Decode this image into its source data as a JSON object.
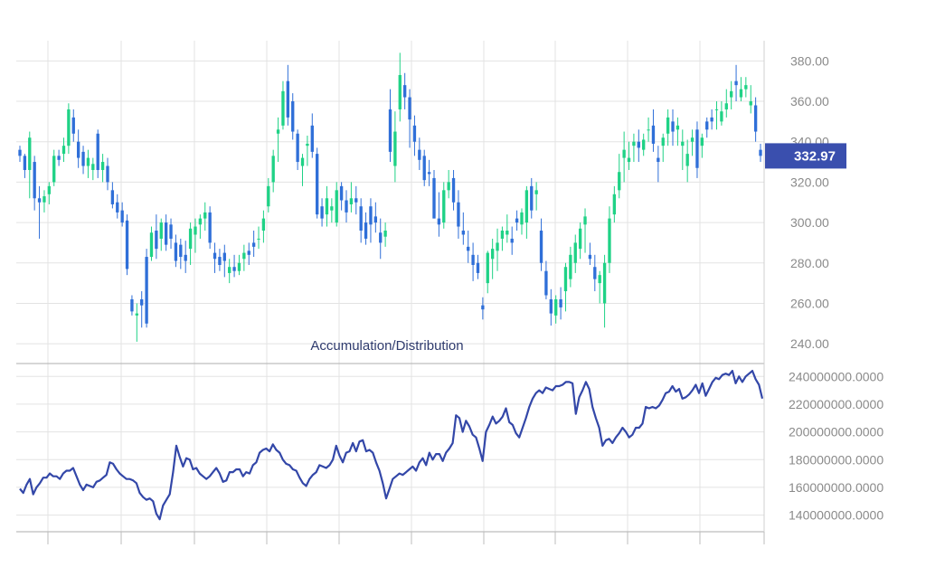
{
  "colors": {
    "up": "#1fd286",
    "down": "#2f6fd8",
    "ad_line": "#3347a8",
    "grid": "#e3e3e3",
    "axis_text": "#8a8a8a",
    "price_tag_bg": "#3a4fae",
    "price_tag_text": "#ffffff",
    "indicator_label": "#2f3b6e"
  },
  "chart_data": [
    {
      "type": "candlestick",
      "y_ticks": [
        "240.00",
        "260.00",
        "280.00",
        "300.00",
        "320.00",
        "340.00",
        "360.00",
        "380.00"
      ],
      "ylim": [
        232,
        390
      ],
      "current_price": "332.97",
      "current_price_value": 332.97,
      "candles": [
        [
          336,
          338,
          330,
          333
        ],
        [
          333,
          334,
          322,
          326
        ],
        [
          326,
          345,
          312,
          342
        ],
        [
          330,
          333,
          306,
          312
        ],
        [
          312,
          318,
          292,
          310
        ],
        [
          310,
          316,
          305,
          313
        ],
        [
          314,
          320,
          309,
          318
        ],
        [
          320,
          336,
          318,
          333
        ],
        [
          333,
          336,
          328,
          331
        ],
        [
          334,
          342,
          330,
          338
        ],
        [
          338,
          359,
          334,
          356
        ],
        [
          352,
          356,
          340,
          344
        ],
        [
          340,
          346,
          327,
          332
        ],
        [
          335,
          338,
          324,
          328
        ],
        [
          328,
          336,
          322,
          332
        ],
        [
          326,
          332,
          321,
          329
        ],
        [
          344,
          346,
          322,
          326
        ],
        [
          326,
          334,
          320,
          330
        ],
        [
          328,
          332,
          316,
          320
        ],
        [
          316,
          320,
          307,
          309
        ],
        [
          310,
          314,
          302,
          305
        ],
        [
          306,
          310,
          298,
          300
        ],
        [
          301,
          304,
          274,
          277
        ],
        [
          262,
          264,
          254,
          256
        ],
        [
          254,
          260,
          241,
          255
        ],
        [
          262,
          266,
          248,
          259
        ],
        [
          283,
          287,
          248,
          250
        ],
        [
          283,
          298,
          281,
          295
        ],
        [
          296,
          304,
          282,
          287
        ],
        [
          292,
          302,
          286,
          300
        ],
        [
          300,
          304,
          286,
          289
        ],
        [
          299,
          302,
          287,
          292
        ],
        [
          290,
          294,
          278,
          281
        ],
        [
          289,
          292,
          277,
          283
        ],
        [
          284,
          291,
          275,
          281
        ],
        [
          287,
          300,
          279,
          297
        ],
        [
          294,
          302,
          285,
          298
        ],
        [
          299,
          304,
          292,
          302
        ],
        [
          302,
          310,
          296,
          305
        ],
        [
          305,
          308,
          287,
          290
        ],
        [
          285,
          290,
          275,
          282
        ],
        [
          283,
          287,
          276,
          279
        ],
        [
          285,
          289,
          273,
          281
        ],
        [
          275,
          282,
          270,
          278
        ],
        [
          278,
          284,
          273,
          276
        ],
        [
          276,
          284,
          274,
          280
        ],
        [
          282,
          289,
          276,
          285
        ],
        [
          286,
          290,
          279,
          284
        ],
        [
          290,
          296,
          283,
          288
        ],
        [
          292,
          298,
          287,
          292
        ],
        [
          296,
          306,
          290,
          302
        ],
        [
          308,
          322,
          305,
          318
        ],
        [
          320,
          336,
          315,
          333
        ],
        [
          344,
          352,
          330,
          346
        ],
        [
          348,
          370,
          346,
          365
        ],
        [
          370,
          378,
          348,
          352
        ],
        [
          360,
          364,
          341,
          345
        ],
        [
          344,
          346,
          326,
          330
        ],
        [
          328,
          334,
          318,
          332
        ],
        [
          338,
          343,
          328,
          339
        ],
        [
          348,
          354,
          332,
          335
        ],
        [
          334,
          337,
          302,
          304
        ],
        [
          308,
          312,
          298,
          302
        ],
        [
          304,
          318,
          298,
          312
        ],
        [
          306,
          312,
          300,
          308
        ],
        [
          300,
          320,
          298,
          316
        ],
        [
          318,
          320,
          306,
          311
        ],
        [
          311,
          316,
          300,
          305
        ],
        [
          309,
          320,
          305,
          312
        ],
        [
          312,
          318,
          304,
          310
        ],
        [
          308,
          312,
          290,
          296
        ],
        [
          300,
          305,
          289,
          292
        ],
        [
          308,
          312,
          290,
          299
        ],
        [
          303,
          310,
          295,
          300
        ],
        [
          295,
          302,
          282,
          290
        ],
        [
          293,
          300,
          288,
          296
        ],
        [
          356,
          366,
          330,
          335
        ],
        [
          328,
          355,
          320,
          345
        ],
        [
          356,
          384,
          350,
          373
        ],
        [
          368,
          374,
          356,
          362
        ],
        [
          362,
          366,
          337,
          351
        ],
        [
          348,
          353,
          333,
          340
        ],
        [
          336,
          342,
          326,
          331
        ],
        [
          333,
          336,
          318,
          321
        ],
        [
          325,
          331,
          318,
          324
        ],
        [
          322,
          326,
          302,
          302
        ],
        [
          302,
          315,
          293,
          299
        ],
        [
          300,
          320,
          297,
          316
        ],
        [
          316,
          326,
          312,
          320
        ],
        [
          322,
          326,
          306,
          310
        ],
        [
          310,
          316,
          292,
          298
        ],
        [
          296,
          305,
          289,
          294
        ],
        [
          288,
          296,
          280,
          286
        ],
        [
          284,
          290,
          271,
          279
        ],
        [
          280,
          284,
          272,
          275
        ],
        [
          259,
          263,
          252,
          257
        ],
        [
          270,
          286,
          265,
          285
        ],
        [
          282,
          292,
          272,
          287
        ],
        [
          286,
          297,
          276,
          290
        ],
        [
          292,
          298,
          286,
          296
        ],
        [
          294,
          304,
          290,
          296
        ],
        [
          292,
          298,
          284,
          290
        ],
        [
          302,
          306,
          296,
          300
        ],
        [
          299,
          307,
          294,
          305
        ],
        [
          300,
          318,
          292,
          316
        ],
        [
          318,
          322,
          302,
          306
        ],
        [
          314,
          320,
          306,
          316
        ],
        [
          296,
          302,
          276,
          280
        ],
        [
          276,
          281,
          262,
          264
        ],
        [
          262,
          267,
          249,
          255
        ],
        [
          254,
          264,
          250,
          262
        ],
        [
          262,
          268,
          252,
          258
        ],
        [
          266,
          280,
          256,
          278
        ],
        [
          272,
          288,
          268,
          284
        ],
        [
          280,
          294,
          275,
          290
        ],
        [
          287,
          300,
          282,
          297
        ],
        [
          299,
          307,
          285,
          303
        ],
        [
          284,
          290,
          279,
          282
        ],
        [
          278,
          284,
          266,
          272
        ],
        [
          270,
          276,
          260,
          274
        ],
        [
          260,
          284,
          248,
          280
        ],
        [
          280,
          308,
          275,
          302
        ],
        [
          304,
          318,
          300,
          314
        ],
        [
          316,
          334,
          312,
          325
        ],
        [
          332,
          345,
          320,
          336
        ],
        [
          330,
          340,
          326,
          332
        ],
        [
          338,
          344,
          330,
          340
        ],
        [
          340,
          346,
          330,
          337
        ],
        [
          336,
          344,
          333,
          341
        ],
        [
          346,
          352,
          340,
          346
        ],
        [
          348,
          356,
          335,
          339
        ],
        [
          332,
          338,
          320,
          330
        ],
        [
          338,
          344,
          330,
          342
        ],
        [
          344,
          356,
          338,
          352
        ],
        [
          350,
          356,
          338,
          345
        ],
        [
          346,
          352,
          338,
          348
        ],
        [
          338,
          346,
          326,
          340
        ],
        [
          328,
          341,
          320,
          334
        ],
        [
          340,
          346,
          333,
          342
        ],
        [
          346,
          350,
          322,
          327
        ],
        [
          338,
          344,
          332,
          342
        ],
        [
          350,
          352,
          342,
          346
        ],
        [
          352,
          356,
          346,
          350
        ],
        [
          356,
          360,
          346,
          356
        ],
        [
          350,
          360,
          348,
          355
        ],
        [
          356,
          366,
          352,
          359
        ],
        [
          362,
          370,
          356,
          365
        ],
        [
          370,
          378,
          360,
          368
        ],
        [
          362,
          372,
          360,
          366
        ],
        [
          366,
          372,
          362,
          368
        ],
        [
          358,
          368,
          354,
          360
        ],
        [
          358,
          362,
          340,
          345
        ],
        [
          336,
          339,
          330,
          333
        ]
      ]
    },
    {
      "type": "line",
      "indicator_label": "Accumulation/Distribution",
      "y_ticks": [
        "140000000.0000",
        "160000000.0000",
        "180000000.0000",
        "200000000.0000",
        "220000000.0000",
        "240000000.0000"
      ],
      "ylim": [
        128000000,
        248000000
      ],
      "series": [
        {
          "values": [
            159,
            156,
            162,
            166,
            155,
            160,
            163,
            167,
            167,
            170,
            168,
            168,
            166,
            170,
            172,
            172,
            174,
            168,
            162,
            158,
            162,
            161,
            160,
            164,
            165,
            167,
            169,
            178,
            177,
            173,
            170,
            168,
            166,
            166,
            165,
            163,
            156,
            153,
            151,
            152,
            150,
            141,
            137,
            147,
            151,
            155,
            171,
            190,
            182,
            175,
            181,
            180,
            173,
            174,
            170,
            168,
            166,
            168,
            171,
            174,
            170,
            164,
            165,
            171,
            171,
            173,
            173,
            168,
            171,
            170,
            176,
            178,
            185,
            187,
            188,
            186,
            191,
            187,
            185,
            180,
            177,
            176,
            173,
            172,
            167,
            163,
            161,
            166,
            169,
            171,
            176,
            175,
            174,
            176,
            180,
            190,
            183,
            178,
            185,
            186,
            192,
            186,
            193,
            194,
            186,
            187,
            185,
            178,
            172,
            163,
            152,
            159,
            166,
            168,
            170,
            169,
            171,
            173,
            175,
            172,
            178,
            181,
            176,
            185,
            180,
            184,
            184,
            179,
            185,
            188,
            192,
            212,
            210,
            200,
            208,
            204,
            198,
            196,
            188,
            179,
            200,
            205,
            211,
            206,
            208,
            211,
            217,
            207,
            205,
            199,
            196,
            203,
            210,
            218,
            224,
            228,
            230,
            228,
            232,
            231,
            230,
            233,
            233,
            234,
            236,
            236,
            235,
            213,
            225,
            230,
            236,
            231,
            218,
            210,
            203,
            190,
            194,
            195,
            192,
            196,
            199,
            203,
            200,
            196,
            198,
            203,
            203,
            206,
            218,
            217,
            218,
            217,
            219,
            223,
            228,
            229,
            233,
            229,
            231,
            224,
            225,
            227,
            230,
            234,
            228,
            235,
            226,
            231,
            236,
            239,
            238,
            241,
            242,
            241,
            244,
            235,
            240,
            236,
            240,
            242,
            244,
            238,
            234,
            224
          ]
        }
      ]
    }
  ]
}
